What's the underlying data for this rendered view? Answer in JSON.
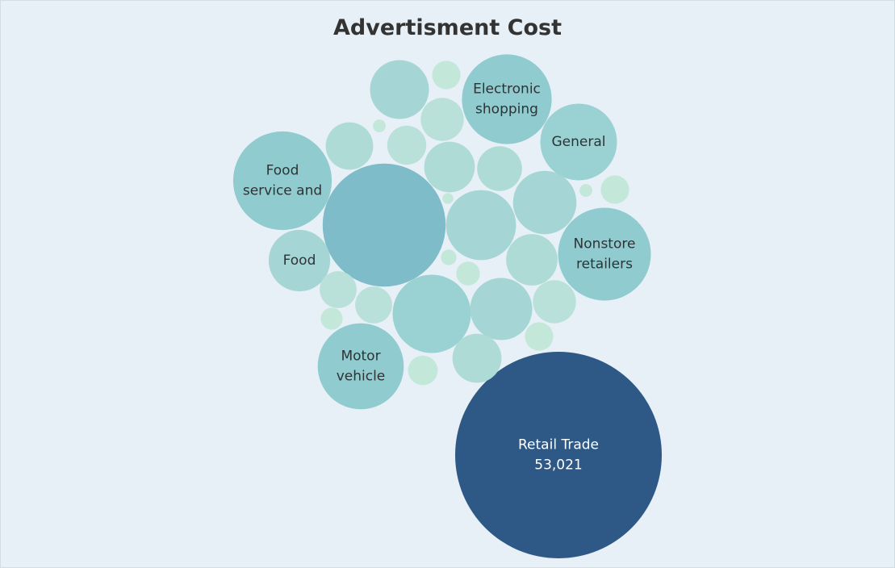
{
  "colors": {
    "background": "#e7f0f6",
    "title": "#333333",
    "scale": [
      "#c3e8da",
      "#b9e1d9",
      "#afdbd7",
      "#a5d6d5",
      "#9ad1d2",
      "#8fcbcf",
      "#7dbcc8",
      "#2e5885"
    ],
    "label_dark": "#2d3436",
    "label_light": "#ffffff"
  },
  "chart_data": {
    "type": "bubble",
    "title": "Advertisment Cost",
    "size_measure": "Advertisment Cost",
    "bubbles": [
      {
        "label": [
          "Retail Trade",
          "53,021"
        ],
        "value": 53021
      },
      {
        "label": [],
        "value": 18800
      },
      {
        "label": [
          "Electronic",
          "shopping"
        ],
        "value": 10000
      },
      {
        "label": [
          "Food",
          "service and"
        ],
        "value": 12100
      },
      {
        "label": [
          "Nonstore",
          "retailers"
        ],
        "value": 10700
      },
      {
        "label": [
          "Motor",
          "vehicle"
        ],
        "value": 9200
      },
      {
        "label": [
          "General"
        ],
        "value": 7300
      },
      {
        "label": [
          "Food"
        ],
        "value": 4700
      },
      {
        "label": [],
        "value": 7600
      },
      {
        "label": [],
        "value": 6100
      },
      {
        "label": [],
        "value": 5000
      },
      {
        "label": [],
        "value": 4800
      },
      {
        "label": [],
        "value": 4300
      },
      {
        "label": [],
        "value": 3300
      },
      {
        "label": [],
        "value": 3200
      },
      {
        "label": [],
        "value": 3000
      },
      {
        "label": [],
        "value": 2800
      },
      {
        "label": [],
        "value": 2500
      },
      {
        "label": [],
        "value": 2300
      },
      {
        "label": [],
        "value": 2300
      },
      {
        "label": [],
        "value": 1900
      },
      {
        "label": [],
        "value": 1700
      },
      {
        "label": [],
        "value": 1700
      },
      {
        "label": [],
        "value": 1100
      },
      {
        "label": [],
        "value": 1000
      },
      {
        "label": [],
        "value": 1000
      },
      {
        "label": [],
        "value": 1000
      },
      {
        "label": [],
        "value": 700
      },
      {
        "label": [],
        "value": 600
      },
      {
        "label": [],
        "value": 300
      },
      {
        "label": [],
        "value": 200
      },
      {
        "label": [],
        "value": 200
      },
      {
        "label": [],
        "value": 150
      }
    ]
  }
}
